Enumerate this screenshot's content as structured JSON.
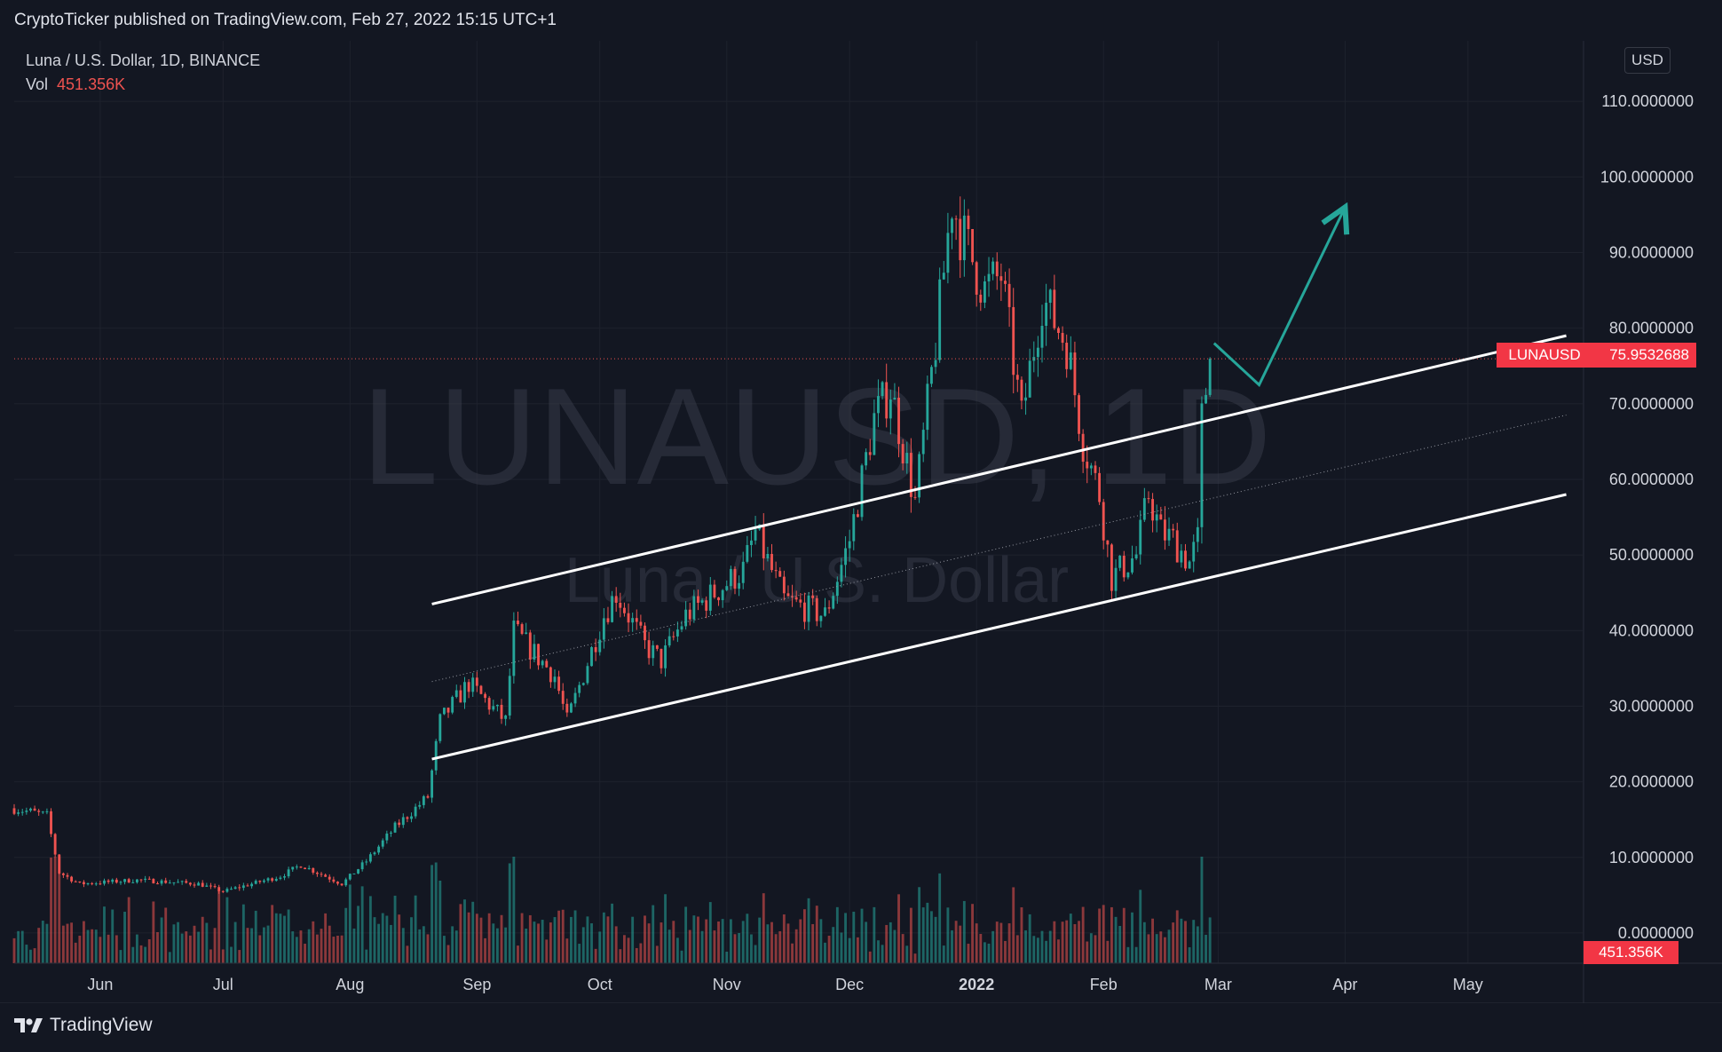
{
  "header": {
    "published_line": "CryptoTicker published on TradingView.com, Feb 27, 2022 15:15 UTC+1"
  },
  "footer": {
    "brand": "TradingView"
  },
  "legend": {
    "symbol_line": "Luna / U.S. Dollar, 1D, BINANCE",
    "vol_label": "Vol",
    "vol_value": "451.356K"
  },
  "watermark": {
    "symbol": "LUNAUSD, 1D",
    "name": "Luna / U.S. Dollar"
  },
  "price_scale": {
    "currency": "USD"
  },
  "last_price": {
    "symbol": "LUNAUSD",
    "value": "75.9532688"
  },
  "last_volume": {
    "value": "451.356K"
  },
  "colors": {
    "up": "#26a69a",
    "down": "#ef5350",
    "background": "#131722",
    "grid": "#1e222d",
    "tag": "#f23645"
  },
  "chart_data": {
    "type": "candlestick",
    "y_ticks": [
      "110.0000000",
      "100.0000000",
      "90.0000000",
      "80.0000000",
      "70.0000000",
      "60.0000000",
      "50.0000000",
      "40.0000000",
      "30.0000000",
      "20.0000000",
      "10.0000000",
      "0.0000000"
    ],
    "y_tick_values": [
      110,
      100,
      90,
      80,
      70,
      60,
      50,
      40,
      30,
      20,
      10,
      0
    ],
    "ylim": [
      -4,
      118
    ],
    "x_ticks": [
      "Jun",
      "Jul",
      "Aug",
      "Sep",
      "Oct",
      "Nov",
      "Dec",
      "2022",
      "Feb",
      "Mar",
      "Apr",
      "May"
    ],
    "x_tick_dates": [
      "2021-06-01",
      "2021-07-01",
      "2021-08-01",
      "2021-09-01",
      "2021-10-01",
      "2021-11-01",
      "2021-12-01",
      "2022-01-01",
      "2022-02-01",
      "2022-03-01",
      "2022-04-01",
      "2022-05-01"
    ],
    "xlim": [
      "2021-05-11",
      "2022-05-29"
    ],
    "last_price": 75.95,
    "price_anchors": [
      [
        "2021-05-11",
        16.5
      ],
      [
        "2021-05-19",
        15.5
      ],
      [
        "2021-05-22",
        8
      ],
      [
        "2021-05-27",
        6.5
      ],
      [
        "2021-06-10",
        7
      ],
      [
        "2021-06-25",
        6.5
      ],
      [
        "2021-07-01",
        5.5
      ],
      [
        "2021-07-15",
        7.5
      ],
      [
        "2021-07-20",
        9
      ],
      [
        "2021-07-30",
        6.5
      ],
      [
        "2021-08-05",
        9.5
      ],
      [
        "2021-08-12",
        14
      ],
      [
        "2021-08-20",
        18
      ],
      [
        "2021-08-23",
        28
      ],
      [
        "2021-08-30",
        33
      ],
      [
        "2021-09-08",
        28
      ],
      [
        "2021-09-10",
        40
      ],
      [
        "2021-09-20",
        34
      ],
      [
        "2021-09-23",
        28
      ],
      [
        "2021-10-02",
        42
      ],
      [
        "2021-10-05",
        45
      ],
      [
        "2021-10-12",
        38
      ],
      [
        "2021-10-16",
        36
      ],
      [
        "2021-10-22",
        42
      ],
      [
        "2021-11-05",
        48
      ],
      [
        "2021-11-08",
        53
      ],
      [
        "2021-11-15",
        44
      ],
      [
        "2021-11-25",
        42
      ],
      [
        "2021-12-01",
        52
      ],
      [
        "2021-12-07",
        68
      ],
      [
        "2021-12-11",
        72
      ],
      [
        "2021-12-17",
        57
      ],
      [
        "2021-12-22",
        78
      ],
      [
        "2021-12-26",
        97
      ],
      [
        "2021-12-28",
        93
      ],
      [
        "2022-01-03",
        85
      ],
      [
        "2022-01-07",
        87
      ],
      [
        "2022-01-12",
        68
      ],
      [
        "2022-01-17",
        84
      ],
      [
        "2022-01-23",
        78
      ],
      [
        "2022-01-27",
        65
      ],
      [
        "2022-01-31",
        58
      ],
      [
        "2022-02-03",
        47
      ],
      [
        "2022-02-09",
        50
      ],
      [
        "2022-02-12",
        58
      ],
      [
        "2022-02-15",
        53
      ],
      [
        "2022-02-18",
        52
      ],
      [
        "2022-02-22",
        49
      ],
      [
        "2022-02-24",
        52
      ],
      [
        "2022-02-25",
        68
      ],
      [
        "2022-02-27",
        75.95
      ]
    ],
    "channel": {
      "upper": [
        [
          "2021-08-21",
          43.5
        ],
        [
          "2022-05-25",
          79
        ]
      ],
      "lower": [
        [
          "2021-08-21",
          23
        ],
        [
          "2022-05-25",
          58
        ]
      ],
      "mid": [
        [
          "2021-08-21",
          33.25
        ],
        [
          "2022-05-25",
          68.5
        ]
      ]
    },
    "projection": [
      [
        "2022-02-28",
        78
      ],
      [
        "2022-03-11",
        72.5
      ],
      [
        "2022-04-01",
        96
      ]
    ],
    "grid": true,
    "legend": "top-left"
  }
}
